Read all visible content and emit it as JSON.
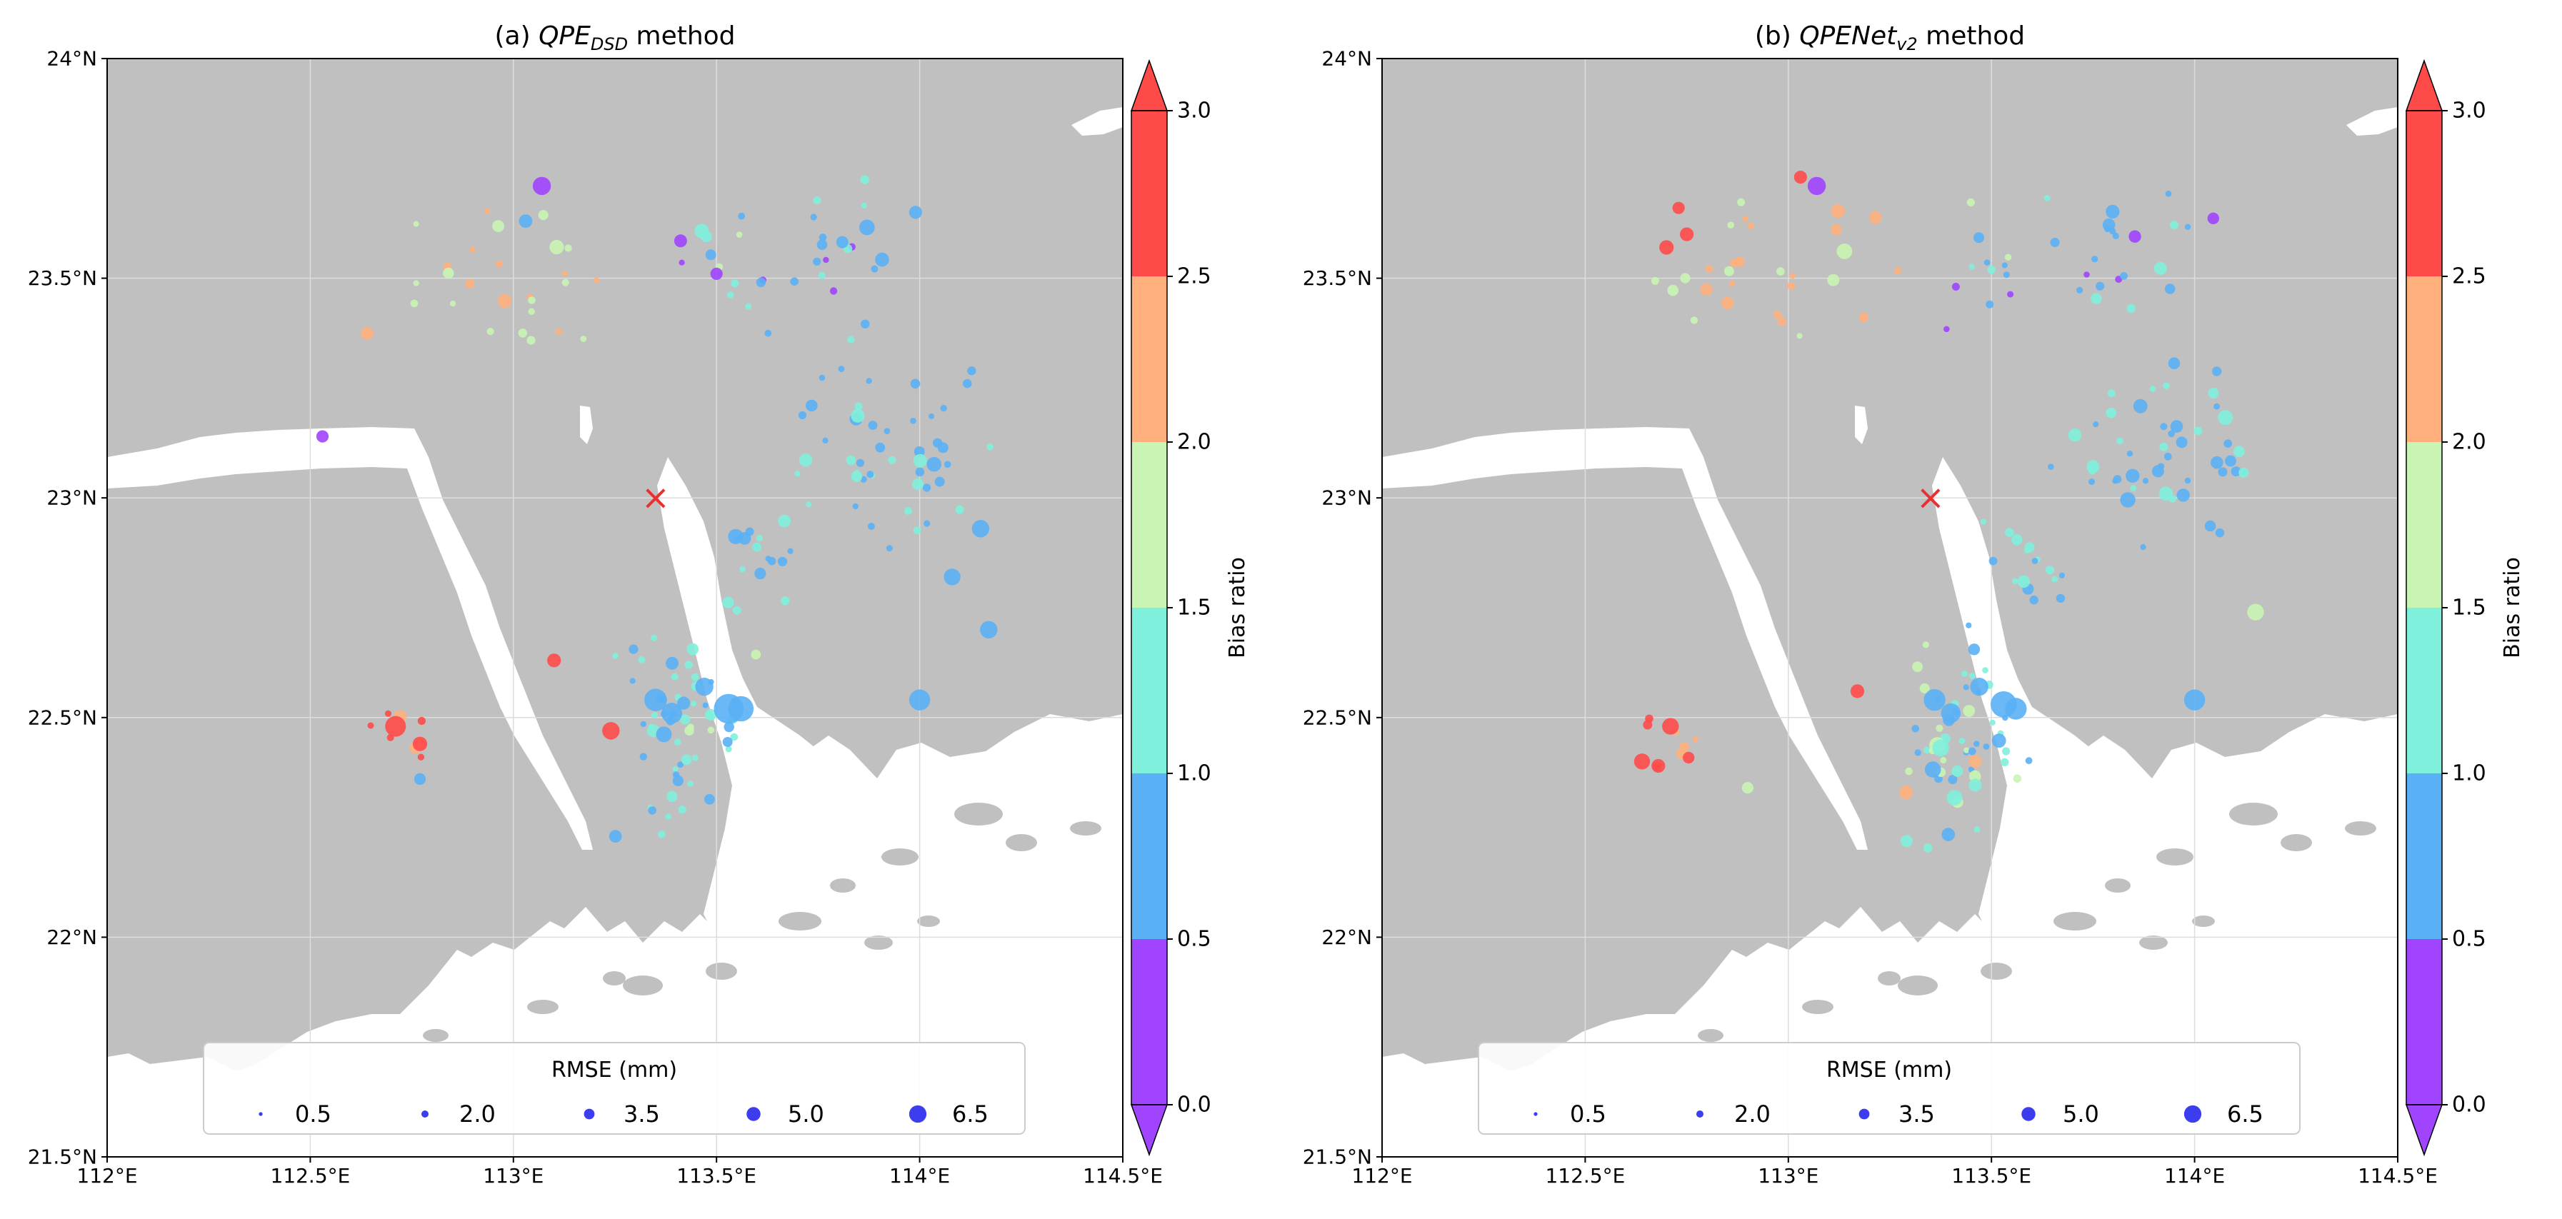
{
  "panels": [
    {
      "id": "a",
      "title_prefix": "(a) ",
      "title_main": "QPE",
      "title_sub": "DSD",
      "title_suffix": " method",
      "seed": 11,
      "highlights": [
        {
          "lon": 113.07,
          "lat": 23.71,
          "rmse": 3.8,
          "bias": 0.3
        },
        {
          "lon": 113.03,
          "lat": 23.63,
          "rmse": 2.5,
          "bias": 0.8
        },
        {
          "lon": 112.71,
          "lat": 22.48,
          "rmse": 4.5,
          "bias": 2.8
        },
        {
          "lon": 112.77,
          "lat": 22.44,
          "rmse": 2.8,
          "bias": 2.8
        },
        {
          "lon": 112.77,
          "lat": 22.36,
          "rmse": 2.0,
          "bias": 0.8
        },
        {
          "lon": 113.1,
          "lat": 22.63,
          "rmse": 2.6,
          "bias": 2.8
        },
        {
          "lon": 113.24,
          "lat": 22.47,
          "rmse": 3.6,
          "bias": 2.8
        },
        {
          "lon": 113.35,
          "lat": 22.54,
          "rmse": 5.0,
          "bias": 0.8
        },
        {
          "lon": 113.39,
          "lat": 22.51,
          "rmse": 4.5,
          "bias": 0.8
        },
        {
          "lon": 113.47,
          "lat": 22.57,
          "rmse": 3.8,
          "bias": 0.8
        },
        {
          "lon": 113.53,
          "lat": 22.52,
          "rmse": 7.0,
          "bias": 0.8
        },
        {
          "lon": 113.56,
          "lat": 22.52,
          "rmse": 5.8,
          "bias": 0.8
        },
        {
          "lon": 114.0,
          "lat": 22.54,
          "rmse": 4.6,
          "bias": 0.8
        },
        {
          "lon": 114.17,
          "lat": 22.7,
          "rmse": 3.6,
          "bias": 0.8
        },
        {
          "lon": 114.08,
          "lat": 22.82,
          "rmse": 3.4,
          "bias": 0.8
        },
        {
          "lon": 114.15,
          "lat": 22.93,
          "rmse": 3.6,
          "bias": 0.8
        },
        {
          "lon": 113.99,
          "lat": 23.65,
          "rmse": 2.4,
          "bias": 0.8
        },
        {
          "lon": 113.5,
          "lat": 23.51,
          "rmse": 2.2,
          "bias": 0.3
        },
        {
          "lon": 112.53,
          "lat": 23.14,
          "rmse": 2.2,
          "bias": 0.3
        }
      ]
    },
    {
      "id": "b",
      "title_prefix": "(b) ",
      "title_main": "QPENet",
      "title_sub": "v2",
      "title_suffix": " method",
      "seed": 29,
      "highlights": [
        {
          "lon": 113.07,
          "lat": 23.71,
          "rmse": 3.8,
          "bias": 0.3
        },
        {
          "lon": 113.03,
          "lat": 23.73,
          "rmse": 2.4,
          "bias": 2.8
        },
        {
          "lon": 112.7,
          "lat": 23.57,
          "rmse": 2.8,
          "bias": 2.8
        },
        {
          "lon": 112.75,
          "lat": 23.6,
          "rmse": 2.6,
          "bias": 2.8
        },
        {
          "lon": 112.73,
          "lat": 23.66,
          "rmse": 2.2,
          "bias": 2.8
        },
        {
          "lon": 112.71,
          "lat": 22.48,
          "rmse": 3.4,
          "bias": 2.8
        },
        {
          "lon": 112.64,
          "lat": 22.4,
          "rmse": 3.2,
          "bias": 2.8
        },
        {
          "lon": 112.68,
          "lat": 22.39,
          "rmse": 2.6,
          "bias": 2.8
        },
        {
          "lon": 113.17,
          "lat": 22.56,
          "rmse": 2.6,
          "bias": 2.8
        },
        {
          "lon": 113.36,
          "lat": 22.54,
          "rmse": 4.8,
          "bias": 0.8
        },
        {
          "lon": 113.4,
          "lat": 22.51,
          "rmse": 4.2,
          "bias": 0.8
        },
        {
          "lon": 113.47,
          "lat": 22.57,
          "rmse": 3.8,
          "bias": 0.8
        },
        {
          "lon": 113.53,
          "lat": 22.53,
          "rmse": 6.0,
          "bias": 0.8
        },
        {
          "lon": 113.56,
          "lat": 22.52,
          "rmse": 4.8,
          "bias": 0.8
        },
        {
          "lon": 114.0,
          "lat": 22.54,
          "rmse": 4.6,
          "bias": 0.8
        },
        {
          "lon": 114.15,
          "lat": 22.74,
          "rmse": 3.4,
          "bias": 1.8
        },
        {
          "lon": 113.29,
          "lat": 22.33,
          "rmse": 2.6,
          "bias": 2.3
        },
        {
          "lon": 113.46,
          "lat": 22.4,
          "rmse": 2.4,
          "bias": 2.3
        },
        {
          "lon": 112.9,
          "lat": 22.34,
          "rmse": 2.0,
          "bias": 1.8
        }
      ]
    }
  ],
  "axes": {
    "lon_range": [
      112.0,
      114.5
    ],
    "lat_range": [
      21.5,
      24.0
    ],
    "lon_ticks": [
      "112°E",
      "112.5°E",
      "113°E",
      "113.5°E",
      "114°E",
      "114.5°E"
    ],
    "lat_ticks": [
      "21.5°N",
      "22°N",
      "22.5°N",
      "23°N",
      "23.5°N",
      "24°N"
    ]
  },
  "colorbar": {
    "label": "Bias ratio",
    "bounds": [
      0.0,
      0.5,
      1.0,
      1.5,
      2.0,
      2.5,
      3.0
    ],
    "tick_labels": [
      "0.0",
      "0.5",
      "1.0",
      "1.5",
      "2.0",
      "2.5",
      "3.0"
    ],
    "colors": [
      "#a044ff",
      "#5ab0f5",
      "#7ff0dc",
      "#c9f5b4",
      "#ffb07c",
      "#ff4a4a"
    ],
    "under_color": "#a044ff",
    "over_color": "#ff4a4a"
  },
  "legend": {
    "title": "RMSE (mm)",
    "sizes": [
      0.5,
      2.0,
      3.5,
      5.0,
      6.5
    ],
    "labels": [
      "0.5",
      "2.0",
      "3.5",
      "5.0",
      "6.5"
    ],
    "marker_color": "#3d3df0"
  },
  "marker": {
    "symbol": "×",
    "lon": 113.35,
    "lat": 23.0,
    "color": "#e83030"
  },
  "colors": {
    "land": "#c0c0c0",
    "water": "#ffffff",
    "grid": "#dddddd"
  }
}
